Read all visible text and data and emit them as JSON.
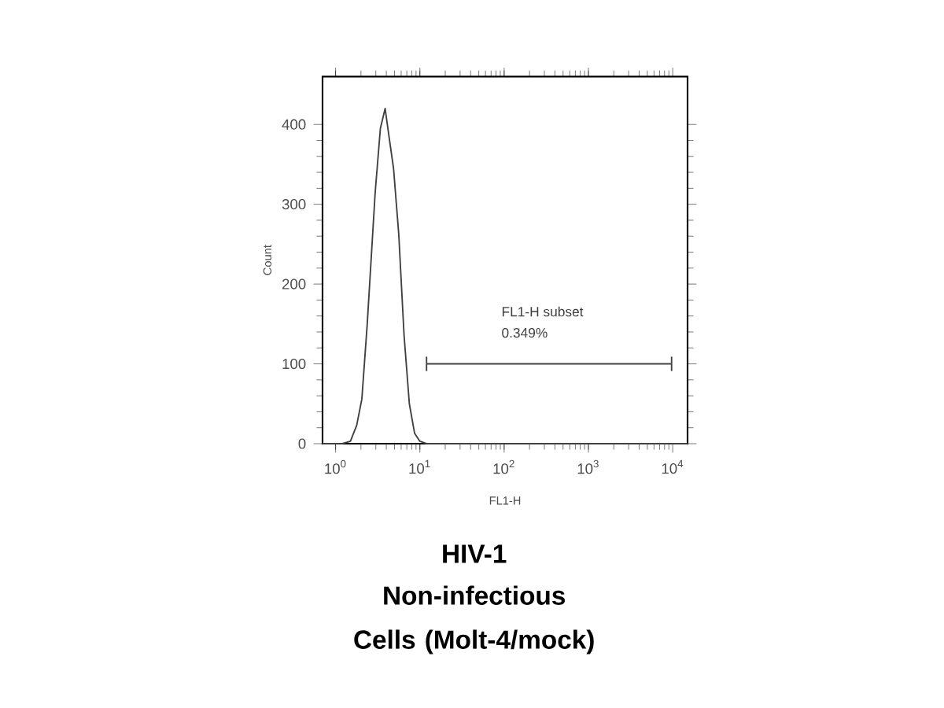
{
  "chart_data": {
    "type": "line",
    "title": "HIV-1",
    "subtitle": "Non-infectious Cells (Molt-4/mock)",
    "xlabel": "FL1-H",
    "ylabel": "Count",
    "log": "x",
    "xlim": [
      0.7,
      15000
    ],
    "ylim": [
      0,
      460
    ],
    "xticks": [
      {
        "value": 1,
        "label": "10$^{0}$"
      },
      {
        "value": 10,
        "label": "10$^{1}$"
      },
      {
        "value": 100,
        "label": "10$^{2}$"
      },
      {
        "value": 1000,
        "label": "10$^{3}$"
      },
      {
        "value": 10000,
        "label": "10$^{4}$"
      }
    ],
    "yticks": [
      0,
      100,
      200,
      300,
      400
    ],
    "grid": false,
    "marker": "none",
    "line_style": "solid",
    "series": [
      {
        "color": "#404040",
        "x": [
          0.7,
          1.2,
          1.5,
          1.78,
          2.05,
          2.37,
          2.95,
          3.4,
          3.87,
          4.34,
          4.87,
          5.62,
          6.49,
          7.5,
          8.66,
          10,
          12,
          15000
        ],
        "values": [
          0,
          0,
          3,
          23,
          56,
          149,
          315,
          395,
          420,
          382,
          345,
          262,
          136,
          50,
          13,
          3,
          0,
          0
        ]
      },
      {
        "color": "#404040",
        "x": [
          12,
          9700
        ],
        "values": [
          100,
          100
        ],
        "errors": [
          9,
          9
        ]
      }
    ],
    "annotations": [
      "FL1-H subset",
      "0.349%"
    ]
  }
}
